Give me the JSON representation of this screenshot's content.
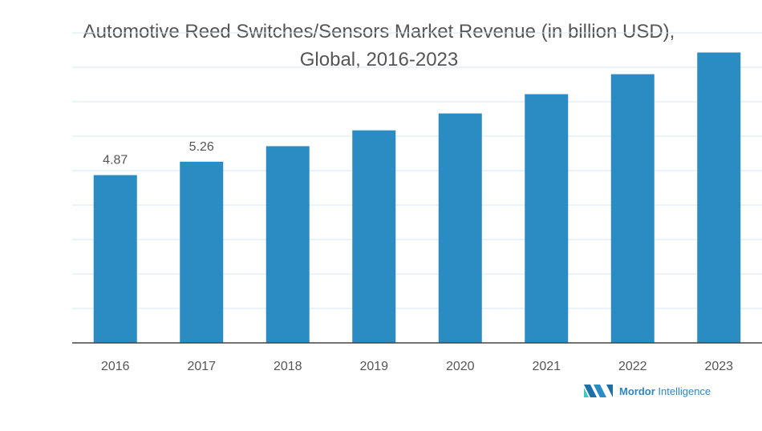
{
  "chart_data": {
    "type": "bar",
    "title": "Automotive Reed Switches/Sensors Market Revenue (in billion USD), Global, 2016-2023",
    "title_lines": [
      "Automotive Reed Switches/Sensors Market Revenue (in billion USD),",
      "Global, 2016-2023"
    ],
    "categories": [
      "2016",
      "2017",
      "2018",
      "2019",
      "2020",
      "2021",
      "2022",
      "2023"
    ],
    "values": [
      4.87,
      5.26,
      5.71,
      6.17,
      6.66,
      7.22,
      7.8,
      8.43
    ],
    "data_labels": [
      "4.87",
      "5.26",
      "",
      "",
      "",
      "",
      "",
      ""
    ],
    "xlabel": "",
    "ylabel": "",
    "ylim": [
      0,
      9
    ],
    "grid": true,
    "bar_color": "#2b8cc4",
    "grid_color": "#d6e8f2"
  },
  "branding": {
    "logo_text_bold": "Mordor",
    "logo_text_regular": " Intelligence"
  }
}
